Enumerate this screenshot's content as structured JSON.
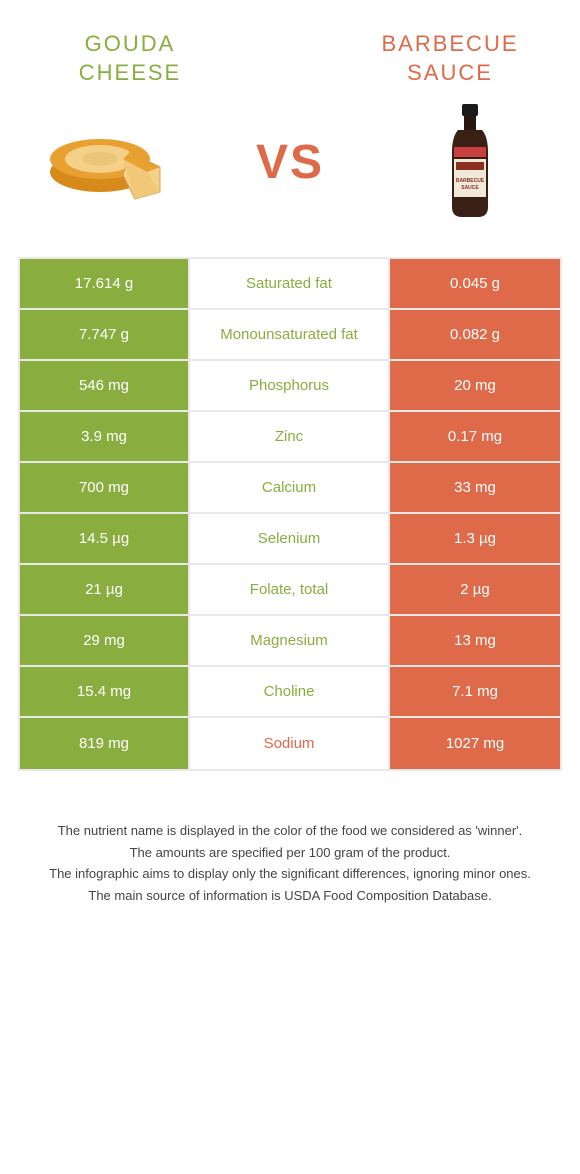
{
  "colors": {
    "green": "#8aad3f",
    "orange": "#de6a4a",
    "lightGray": "#f5f5f5",
    "white": "#ffffff"
  },
  "header": {
    "left": "GOUDA\nCHEESE",
    "right": "BARBECUE\nSAUCE",
    "vs": "VS"
  },
  "rows": [
    {
      "left": "17.614 g",
      "label": "Saturated fat",
      "right": "0.045 g",
      "winner": "left"
    },
    {
      "left": "7.747 g",
      "label": "Monounsaturated fat",
      "right": "0.082 g",
      "winner": "left"
    },
    {
      "left": "546 mg",
      "label": "Phosphorus",
      "right": "20 mg",
      "winner": "left"
    },
    {
      "left": "3.9 mg",
      "label": "Zinc",
      "right": "0.17 mg",
      "winner": "left"
    },
    {
      "left": "700 mg",
      "label": "Calcium",
      "right": "33 mg",
      "winner": "left"
    },
    {
      "left": "14.5 µg",
      "label": "Selenium",
      "right": "1.3 µg",
      "winner": "left"
    },
    {
      "left": "21 µg",
      "label": "Folate, total",
      "right": "2 µg",
      "winner": "left"
    },
    {
      "left": "29 mg",
      "label": "Magnesium",
      "right": "13 mg",
      "winner": "left"
    },
    {
      "left": "15.4 mg",
      "label": "Choline",
      "right": "7.1 mg",
      "winner": "left"
    },
    {
      "left": "819 mg",
      "label": "Sodium",
      "right": "1027 mg",
      "winner": "right"
    }
  ],
  "footer": {
    "line1": "The nutrient name is displayed in the color of the food we considered as 'winner'.",
    "line2": "The amounts are specified per 100 gram of the product.",
    "line3": "The infographic aims to display only the significant differences, ignoring minor ones.",
    "line4": "The main source of information is USDA Food Composition Database."
  }
}
